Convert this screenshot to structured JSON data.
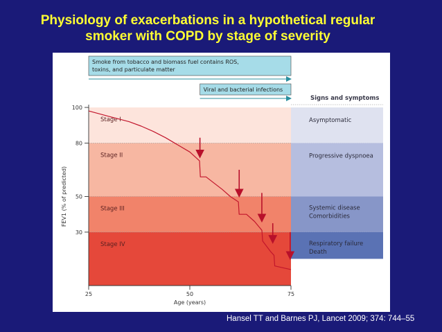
{
  "slide": {
    "title_line1": "Physiology of exacerbations in a hypothetical regular",
    "title_line2": "smoker with COPD by stage of severity",
    "citation": "Hansel TT and Barnes PJ, Lancet 2009; 374: 744–55"
  },
  "colors": {
    "background": "#1a1a78",
    "title": "#ffff33",
    "stage_i": "#fde4dc",
    "stage_ii": "#f7b7a2",
    "stage_iii": "#f1836a",
    "stage_iv": "#e5483a",
    "sym_1": "#dfe2f0",
    "sym_2": "#b6bedf",
    "sym_3": "#8796c8",
    "sym_4": "#5a72b4",
    "banner": "#a6dce8",
    "curve": "#c2162c",
    "arrow": "#b8102a"
  },
  "chart_data": {
    "type": "line",
    "title": "",
    "xlabel": "Age (years)",
    "ylabel": "FEV1 (% of predicted)",
    "xlim": [
      25,
      75
    ],
    "ylim": [
      0,
      100
    ],
    "xticks": [
      "25",
      "50",
      "75"
    ],
    "yticks": [
      "30",
      "50",
      "80",
      "100"
    ],
    "series": [
      {
        "name": "FEV1",
        "x": [
          25,
          30,
          35,
          38,
          41,
          44,
          47,
          50,
          52.4,
          52.6,
          54,
          56,
          58,
          60,
          62,
          62.2,
          64,
          66,
          67.8,
          68,
          70,
          70.8,
          71,
          73,
          75
        ],
        "y": [
          98,
          95,
          92,
          89.5,
          86.5,
          83,
          79,
          75,
          70,
          61,
          61,
          57.5,
          54,
          50,
          47,
          40,
          40,
          36,
          31,
          25,
          19,
          17,
          11,
          10,
          9
        ]
      }
    ],
    "stages": [
      {
        "label": "Stage I",
        "from": 80,
        "to": 100
      },
      {
        "label": "Stage II",
        "from": 50,
        "to": 80
      },
      {
        "label": "Stage III",
        "from": 30,
        "to": 50
      },
      {
        "label": "Stage IV",
        "from": 0,
        "to": 30
      }
    ],
    "signs_header": "Signs and symptoms",
    "symptoms": [
      {
        "lines": [
          "Asymptomatic"
        ],
        "from": 80,
        "to": 100
      },
      {
        "lines": [
          "Progressive dyspnoea"
        ],
        "from": 50,
        "to": 80
      },
      {
        "lines": [
          "Systemic disease",
          "Comorbidities"
        ],
        "from": 30,
        "to": 50
      },
      {
        "lines": [
          "Respiratory failure",
          "Death"
        ],
        "from": 15,
        "to": 30
      }
    ],
    "exacerbations": [
      {
        "x": 52.5,
        "y_top": 83,
        "y_tip": 72
      },
      {
        "x": 62.2,
        "y_top": 65,
        "y_tip": 50
      },
      {
        "x": 67.8,
        "y_top": 52,
        "y_tip": 36
      },
      {
        "x": 70.5,
        "y_top": 35,
        "y_tip": 24
      },
      {
        "x": 74.8,
        "y_top": 30,
        "y_tip": 15
      }
    ],
    "banners": [
      {
        "lines": [
          "Smoke from tobacco and biomass fuel contains ROS,",
          "toxins, and particulate matter"
        ],
        "from_x": 25,
        "to_x": 75
      },
      {
        "lines": [
          "Viral and bacterial infections"
        ],
        "from_x": 52.5,
        "to_x": 75
      }
    ]
  }
}
